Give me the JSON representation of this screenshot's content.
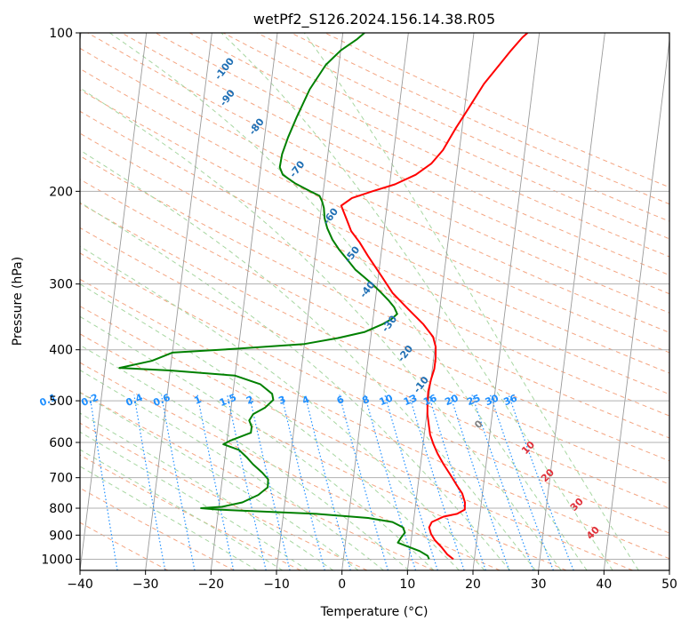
{
  "chart_data": {
    "type": "line",
    "title": "wetPf2_S126.2024.156.14.38.R05",
    "xlabel": "Temperature (°C)",
    "ylabel": "Pressure (hPa)",
    "xlim": [
      -40,
      50
    ],
    "ylim": [
      1050,
      100
    ],
    "y_scale": "log",
    "x_ticks": [
      "−40",
      "−30",
      "−20",
      "−10",
      "0",
      "10",
      "20",
      "30",
      "40",
      "50"
    ],
    "x_tick_values": [
      -40,
      -30,
      -20,
      -10,
      0,
      10,
      20,
      30,
      40,
      50
    ],
    "y_ticks": [
      "100",
      "200",
      "300",
      "400",
      "500",
      "600",
      "700",
      "800",
      "900",
      "1000"
    ],
    "y_tick_values": [
      100,
      200,
      300,
      400,
      500,
      600,
      700,
      800,
      900,
      1000
    ],
    "grid": true,
    "series": [
      {
        "color": "#ff0000",
        "points": [
          [
            16.8,
            1000
          ],
          [
            15.8,
            980
          ],
          [
            14.8,
            950
          ],
          [
            13.6,
            920
          ],
          [
            12.9,
            895
          ],
          [
            12.5,
            870
          ],
          [
            12.8,
            850
          ],
          [
            14.5,
            830
          ],
          [
            16.5,
            820
          ],
          [
            17.6,
            805
          ],
          [
            17.5,
            780
          ],
          [
            16.9,
            750
          ],
          [
            15.8,
            720
          ],
          [
            14.7,
            690
          ],
          [
            13.5,
            660
          ],
          [
            12.4,
            630
          ],
          [
            11.6,
            605
          ],
          [
            10.9,
            580
          ],
          [
            10.5,
            555
          ],
          [
            10.1,
            530
          ],
          [
            9.9,
            505
          ],
          [
            9.8,
            480
          ],
          [
            10.0,
            455
          ],
          [
            10.3,
            435
          ],
          [
            10.3,
            415
          ],
          [
            10.1,
            395
          ],
          [
            9.5,
            378
          ],
          [
            7.8,
            358
          ],
          [
            5.2,
            335
          ],
          [
            2.5,
            312
          ],
          [
            0.5,
            290
          ],
          [
            -2.0,
            265
          ],
          [
            -3.5,
            250
          ],
          [
            -5.0,
            238
          ],
          [
            -6.0,
            225
          ],
          [
            -7.0,
            213
          ],
          [
            -5.5,
            206
          ],
          [
            -2.5,
            200
          ],
          [
            0.8,
            194
          ],
          [
            3.8,
            186
          ],
          [
            6.0,
            177
          ],
          [
            7.5,
            167
          ],
          [
            9.0,
            152
          ],
          [
            10.5,
            140
          ],
          [
            12.5,
            125
          ],
          [
            14.5,
            115
          ],
          [
            16.0,
            108
          ],
          [
            17.5,
            102
          ],
          [
            18.2,
            100
          ]
        ]
      },
      {
        "color": "#008000",
        "points": [
          [
            13.1,
            1000
          ],
          [
            12.8,
            985
          ],
          [
            11.5,
            965
          ],
          [
            9.5,
            945
          ],
          [
            8.0,
            930
          ],
          [
            8.4,
            910
          ],
          [
            8.9,
            890
          ],
          [
            8.5,
            870
          ],
          [
            6.8,
            850
          ],
          [
            3.0,
            835
          ],
          [
            -5.0,
            820
          ],
          [
            -20.0,
            805
          ],
          [
            -22.7,
            800
          ],
          [
            -19.5,
            795
          ],
          [
            -16.5,
            780
          ],
          [
            -14.2,
            755
          ],
          [
            -12.9,
            730
          ],
          [
            -13.0,
            705
          ],
          [
            -14.0,
            685
          ],
          [
            -15.6,
            660
          ],
          [
            -16.7,
            640
          ],
          [
            -18.0,
            620
          ],
          [
            -20.5,
            605
          ],
          [
            -19.5,
            595
          ],
          [
            -16.5,
            575
          ],
          [
            -16.5,
            560
          ],
          [
            -17.0,
            545
          ],
          [
            -16.5,
            530
          ],
          [
            -14.8,
            515
          ],
          [
            -13.7,
            498
          ],
          [
            -14.0,
            485
          ],
          [
            -16.0,
            465
          ],
          [
            -20.0,
            448
          ],
          [
            -30.0,
            438
          ],
          [
            -37.8,
            433
          ],
          [
            -33.0,
            420
          ],
          [
            -30.0,
            405
          ],
          [
            -20.0,
            398
          ],
          [
            -10.0,
            390
          ],
          [
            -5.0,
            380
          ],
          [
            -1.0,
            370
          ],
          [
            1.5,
            358
          ],
          [
            2.8,
            350
          ],
          [
            3.6,
            342
          ],
          [
            3.0,
            332
          ],
          [
            2.0,
            322
          ],
          [
            0.8,
            312
          ],
          [
            -0.5,
            302
          ],
          [
            -2.0,
            292
          ],
          [
            -3.6,
            282
          ],
          [
            -5.0,
            270
          ],
          [
            -6.5,
            258
          ],
          [
            -7.7,
            247
          ],
          [
            -8.7,
            235
          ],
          [
            -9.3,
            225
          ],
          [
            -9.6,
            215
          ],
          [
            -10.0,
            209
          ],
          [
            -10.5,
            204
          ],
          [
            -12.0,
            200
          ],
          [
            -14.5,
            193
          ],
          [
            -16.5,
            186
          ],
          [
            -17.1,
            180
          ],
          [
            -17.0,
            170
          ],
          [
            -16.4,
            158
          ],
          [
            -15.5,
            145
          ],
          [
            -14.0,
            128
          ],
          [
            -12.0,
            115
          ],
          [
            -10.0,
            108
          ],
          [
            -7.8,
            103
          ],
          [
            -6.7,
            100
          ]
        ]
      }
    ],
    "mixing_ratio_labels": [
      "0.1",
      "0.2",
      "0.4",
      "0.6",
      "1",
      "1.5",
      "2",
      "3",
      "4",
      "6",
      "8",
      "10",
      "13",
      "16",
      "20",
      "25",
      "30",
      "36"
    ],
    "dry_adiabat_labels": [
      "-100",
      "-90",
      "-80",
      "-70",
      "-60",
      "-50",
      "-40",
      "-30",
      "-20",
      "-10"
    ],
    "moist_adiabat_labels": [
      "0",
      "10",
      "20",
      "30",
      "40"
    ],
    "colors": {
      "isobar": "#b0b0b0",
      "isotherm": "#9a9a9a",
      "dry_adiabat": "#f4a582",
      "moist_adiabat": "#a6d6a0",
      "mixing_ratio": "#1f8fff",
      "dry_label": "#1f6fb4",
      "moist_label": "#e0303a",
      "temperature": "#ff0000",
      "dewpoint": "#008000"
    }
  }
}
